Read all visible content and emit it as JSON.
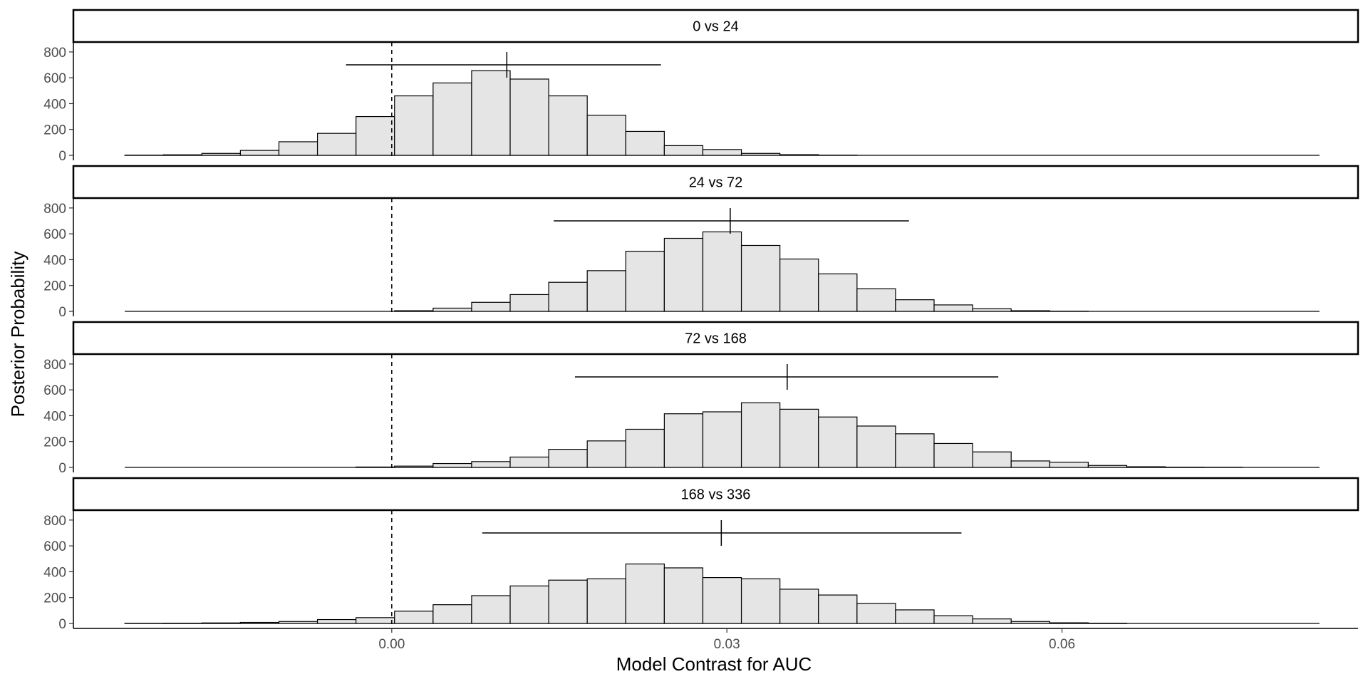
{
  "chart_data": {
    "type": "bar",
    "xlabel": "Model Contrast for AUC",
    "ylabel": "Posterior Probability",
    "xlim": [
      -0.0285,
      0.0865
    ],
    "ylim": [
      0,
      860
    ],
    "xticks": [
      0.0,
      0.03,
      0.06
    ],
    "xtick_labels": [
      "0.00",
      "0.03",
      "0.06"
    ],
    "yticks": [
      0,
      200,
      400,
      600,
      800
    ],
    "ytick_labels": [
      "0",
      "200",
      "400",
      "600",
      "800"
    ],
    "bin_width": 0.00345,
    "bin_start": -0.0239,
    "reference_line": 0.0,
    "colors": {
      "bar_fill": "#e5e5e5",
      "stroke": "#000000",
      "strip_fill": "#ffffff"
    },
    "panels": [
      {
        "label": "0 vs 24",
        "counts": [
          1,
          4,
          15,
          38,
          105,
          170,
          300,
          460,
          560,
          655,
          590,
          460,
          310,
          185,
          75,
          45,
          15,
          5,
          1,
          0,
          0,
          0,
          0,
          0,
          0,
          0,
          0,
          0,
          0,
          0,
          0
        ],
        "interval": [
          -0.0041,
          0.0241
        ],
        "point": 0.0103
      },
      {
        "label": "24 vs 72",
        "counts": [
          0,
          0,
          0,
          0,
          0,
          0,
          0,
          5,
          25,
          70,
          130,
          225,
          315,
          465,
          565,
          615,
          510,
          405,
          290,
          175,
          90,
          50,
          20,
          5,
          1,
          0,
          0,
          0,
          0,
          0,
          0
        ],
        "interval": [
          0.0145,
          0.0463
        ],
        "point": 0.0303
      },
      {
        "label": "72 vs 168",
        "counts": [
          0,
          0,
          0,
          0,
          0,
          0,
          3,
          10,
          30,
          45,
          80,
          140,
          205,
          295,
          415,
          430,
          500,
          450,
          390,
          320,
          260,
          185,
          120,
          50,
          40,
          15,
          5,
          2,
          1,
          0,
          0
        ],
        "interval": [
          0.0164,
          0.0543
        ],
        "point": 0.0354
      },
      {
        "label": "168 vs 336",
        "counts": [
          1,
          2,
          4,
          8,
          15,
          30,
          45,
          95,
          145,
          215,
          290,
          335,
          345,
          460,
          430,
          355,
          345,
          265,
          220,
          155,
          105,
          60,
          35,
          15,
          5,
          2,
          0,
          0,
          0,
          0,
          0
        ],
        "interval": [
          0.0081,
          0.051
        ],
        "point": 0.0295
      }
    ]
  }
}
